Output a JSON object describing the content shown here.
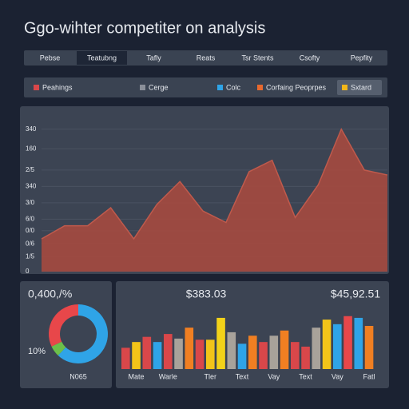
{
  "title": "Ggo-wihter competiter on analysis",
  "tabs": [
    "Pebse",
    "Teatubng",
    "Tafly",
    "Reats",
    "Tsr Stents",
    "Csofty",
    "Pepfity"
  ],
  "active_tab": 1,
  "legend": [
    {
      "name": "Peahings",
      "color": "#d9474a"
    },
    {
      "name": "Cerge",
      "color": "#8a8f99"
    },
    {
      "name": "Colc",
      "color": "#2fa4e7"
    },
    {
      "name": "Corfaing Peoprpes",
      "color": "#e8692e"
    },
    {
      "name": "Sxtard",
      "color": "#f2b619"
    }
  ],
  "active_legend": 4,
  "chart_data": [
    {
      "type": "area",
      "color": "#a54a3f",
      "values": [
        20,
        28,
        28,
        39,
        20,
        41,
        55,
        37,
        30,
        61,
        68,
        33,
        53,
        87,
        62,
        59
      ],
      "ylim": [
        0,
        100
      ],
      "yticks": [
        {
          "value": 87,
          "label": "340"
        },
        {
          "value": 75,
          "label": "160"
        },
        {
          "value": 62,
          "label": "2/5"
        },
        {
          "value": 52,
          "label": "340"
        },
        {
          "value": 42,
          "label": "3/0"
        },
        {
          "value": 32,
          "label": "6/0"
        },
        {
          "value": 25,
          "label": "0/0"
        },
        {
          "value": 17,
          "label": "0/6"
        },
        {
          "value": 9,
          "label": "1/5"
        },
        0
      ],
      "grid": true
    },
    {
      "type": "donut",
      "title": "0,400,/%",
      "annotations": [
        "10%",
        "N065"
      ],
      "values": [
        62,
        6,
        32
      ],
      "colors": [
        "#2fa4e7",
        "#6cbf4a",
        "#e8474a"
      ]
    },
    {
      "type": "bar",
      "title": "$383.03",
      "subtitle": "$45,92.51",
      "categories": [
        null,
        "Mate",
        null,
        null,
        "Warle",
        null,
        null,
        null,
        "Tler",
        null,
        null,
        "Text",
        null,
        null,
        "Vay",
        null,
        null,
        "Text",
        null,
        null,
        "Vay",
        null,
        null,
        "Fatl"
      ],
      "values": [
        37,
        47,
        56,
        47,
        61,
        53,
        72,
        51,
        51,
        89,
        64,
        44,
        58,
        47,
        58,
        67,
        47,
        39,
        72,
        86,
        78,
        92,
        89,
        75
      ],
      "colors": [
        "#d9474a",
        "#f2c419",
        "#d9474a",
        "#2fa4e7",
        "#d9474a",
        "#a8a29a",
        "#f07f22",
        "#d9474a",
        "#f2c419",
        "#f2d219",
        "#a8a29a",
        "#2fa4e7",
        "#f07f22",
        "#d9474a",
        "#a8a29a",
        "#f07f22",
        "#d9474a",
        "#d9474a",
        "#a8a29a",
        "#f2c419",
        "#2fa4e7",
        "#e8474a",
        "#2fa4e7",
        "#f07f22"
      ],
      "ylim": [
        0,
        100
      ]
    }
  ]
}
